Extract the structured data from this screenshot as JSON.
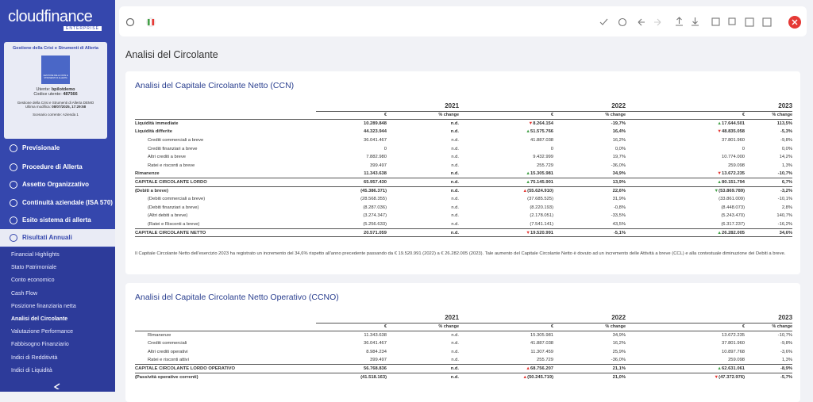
{
  "sidebar": {
    "logo": "cloudfinance",
    "logo_sub": "ENTERPRISE",
    "card": {
      "title": "Gestione della Crisi e Strumenti di Allerta",
      "icon_text": "GESTIONE DELLA CRISI E STRUMENTI DI ALLERTA",
      "user_label": "Utente:",
      "user": "bpilotdemo",
      "code_label": "Codice utente:",
      "code": "487566",
      "product": "Gestione della Crisi e Strumenti di Allerta DEMO",
      "modified_label": "Ultima modifica:",
      "modified": "08/07/2025, 17:29:58",
      "scenario": "Scenario corrente: Azienda 1"
    },
    "menu": [
      "Previsionale",
      "Procedure di Allerta",
      "Assetto Organizzativo",
      "Continuità aziendale (ISA 570)",
      "Esito sistema di allerta",
      "Risultati Annuali"
    ],
    "submenu": [
      "Financial Highlights",
      "Stato Patrimoniale",
      "Conto economico",
      "Cash Flow",
      "Posizione finanziaria netta",
      "Analisi del Circolante",
      "Valutazione Performance",
      "Fabbisogno Finanziario",
      "Indici di Redditività",
      "Indici di Liquidità"
    ]
  },
  "page": {
    "title": "Analisi del Circolante"
  },
  "tables": [
    {
      "title": "Analisi del Capitale Circolante Netto (CCN)",
      "years": [
        "2021",
        "2022",
        "2023"
      ],
      "subheaders": [
        "€",
        "% change"
      ],
      "rows": [
        {
          "label": "Liquidità immediate",
          "bold": true,
          "cells": [
            "10.289.848",
            "n.d.",
            {
              "arrow": "▼",
              "text": "8.264.154",
              "color": "#e53935"
            },
            "-19,7%",
            {
              "arrow": "▲",
              "text": "17.644.501",
              "color": "#43a047"
            },
            "113,5%"
          ]
        },
        {
          "label": "Liquidità differite",
          "bold": true,
          "cells": [
            "44.323.944",
            "n.d.",
            {
              "arrow": "▲",
              "text": "51.575.766",
              "color": "#43a047"
            },
            "16,4%",
            {
              "arrow": "▼",
              "text": "48.835.058",
              "color": "#e53935"
            },
            "-5,3%"
          ]
        },
        {
          "label": "Crediti commerciali a breve",
          "cells": [
            "36.041.467",
            "n.d.",
            "41.887.038",
            "16,2%",
            "37.801.960",
            "-9,8%"
          ]
        },
        {
          "label": "Crediti finanziari a breve",
          "cells": [
            "0",
            "n.d.",
            "0",
            "0,0%",
            "0",
            "0,0%"
          ]
        },
        {
          "label": "Altri crediti a breve",
          "cells": [
            "7.882.980",
            "n.d.",
            "9.432.999",
            "19,7%",
            "10.774.000",
            "14,2%"
          ]
        },
        {
          "label": "Ratei e risconti a breve",
          "cells": [
            "399.497",
            "n.d.",
            "255.729",
            "-36,0%",
            "259.098",
            "1,3%"
          ]
        },
        {
          "label": "Rimanenze",
          "bold": true,
          "cells": [
            "11.343.638",
            "n.d.",
            {
              "arrow": "▲",
              "text": "15.305.981",
              "color": "#43a047"
            },
            "34,9%",
            {
              "arrow": "▼",
              "text": "13.672.235",
              "color": "#e53935"
            },
            "-10,7%"
          ]
        },
        {
          "label": "CAPITALE CIRCOLANTE LORDO",
          "bold": true,
          "total": true,
          "cells": [
            "65.957.430",
            "n.d.",
            {
              "arrow": "▲",
              "text": "75.145.901",
              "color": "#43a047"
            },
            "13,9%",
            {
              "arrow": "▲",
              "text": "80.151.794",
              "color": "#43a047"
            },
            "6,7%"
          ]
        },
        {
          "label": "(Debiti a breve)",
          "bold": true,
          "cells": [
            "(45.386.371)",
            "n.d.",
            {
              "arrow": "▲",
              "text": "(55.624.910)",
              "color": "#e53935"
            },
            "22,6%",
            {
              "arrow": "▼",
              "text": "(53.869.789)",
              "color": "#43a047"
            },
            "-3,2%"
          ]
        },
        {
          "label": "(Debiti commerciali a breve)",
          "cells": [
            "(28.568.355)",
            "n.d.",
            "(37.685.525)",
            "31,9%",
            "(33.861.009)",
            "-10,1%"
          ]
        },
        {
          "label": "(Debiti finanziari a breve)",
          "cells": [
            "(8.287.036)",
            "n.d.",
            "(8.220.193)",
            "-0,8%",
            "(8.448.073)",
            "2,8%"
          ]
        },
        {
          "label": "(Altri debiti a breve)",
          "cells": [
            "(3.274.347)",
            "n.d.",
            "(2.178.051)",
            "-33,5%",
            "(5.243.470)",
            "140,7%"
          ]
        },
        {
          "label": "(Ratei e Risconti a breve)",
          "cells": [
            "(5.256.633)",
            "n.d.",
            "(7.541.141)",
            "43,5%",
            "(6.317.237)",
            "-16,2%"
          ]
        },
        {
          "label": "CAPITALE CIRCOLANTE NETTO",
          "bold": true,
          "total": true,
          "cells": [
            "20.571.059",
            "n.d.",
            {
              "arrow": "▼",
              "text": "19.520.991",
              "color": "#e53935"
            },
            "-5,1%",
            {
              "arrow": "▲",
              "text": "26.282.005",
              "color": "#43a047"
            },
            "34,6%"
          ]
        }
      ],
      "note": "Il Capitale Circolante Netto dell'esercizio 2023 ha registrato un incremento del 34,6% rispetto all'anno precedente passando da € 19.520.991 (2022) a € 26.282.005 (2023). Tale aumento del Capitale Circolante Netto è dovuto ad un incremento delle Attività a breve (CCL) e alla contestuale diminuzione dei Debiti a breve."
    },
    {
      "title": "Analisi del Capitale Circolante Netto Operativo (CCNO)",
      "years": [
        "2021",
        "2022",
        "2023"
      ],
      "subheaders": [
        "€",
        "% change"
      ],
      "rows": [
        {
          "label": "Rimanenze",
          "cells": [
            "11.343.638",
            "n.d.",
            "15.305.981",
            "34,9%",
            "13.672.235",
            "-10,7%"
          ]
        },
        {
          "label": "Crediti commerciali",
          "cells": [
            "36.041.467",
            "n.d.",
            "41.887.038",
            "16,2%",
            "37.801.960",
            "-9,8%"
          ]
        },
        {
          "label": "Altri crediti operativi",
          "cells": [
            "8.984.234",
            "n.d.",
            "11.307.459",
            "25,9%",
            "10.897.768",
            "-3,6%"
          ]
        },
        {
          "label": "Ratei e risconti attivi",
          "cells": [
            "399.497",
            "n.d.",
            "255.729",
            "-36,0%",
            "259.098",
            "1,3%"
          ]
        },
        {
          "label": "CAPITALE CIRCOLANTE LORDO OPERATIVO",
          "bold": true,
          "total": true,
          "cells": [
            "56.768.836",
            "n.d.",
            {
              "arrow": "▲",
              "text": "68.756.207",
              "color": "#e53935"
            },
            "21,1%",
            {
              "arrow": "▲",
              "text": "62.631.061",
              "color": "#43a047"
            },
            "-8,9%"
          ]
        },
        {
          "label": "(Passività operative correnti)",
          "bold": true,
          "cells": [
            "(41.518.163)",
            "n.d.",
            {
              "arrow": "▲",
              "text": "(50.245.719)",
              "color": "#e53935"
            },
            "21,0%",
            {
              "arrow": "▼",
              "text": "(47.372.976)",
              "color": "#e53935"
            },
            "-5,7%"
          ]
        }
      ]
    }
  ]
}
